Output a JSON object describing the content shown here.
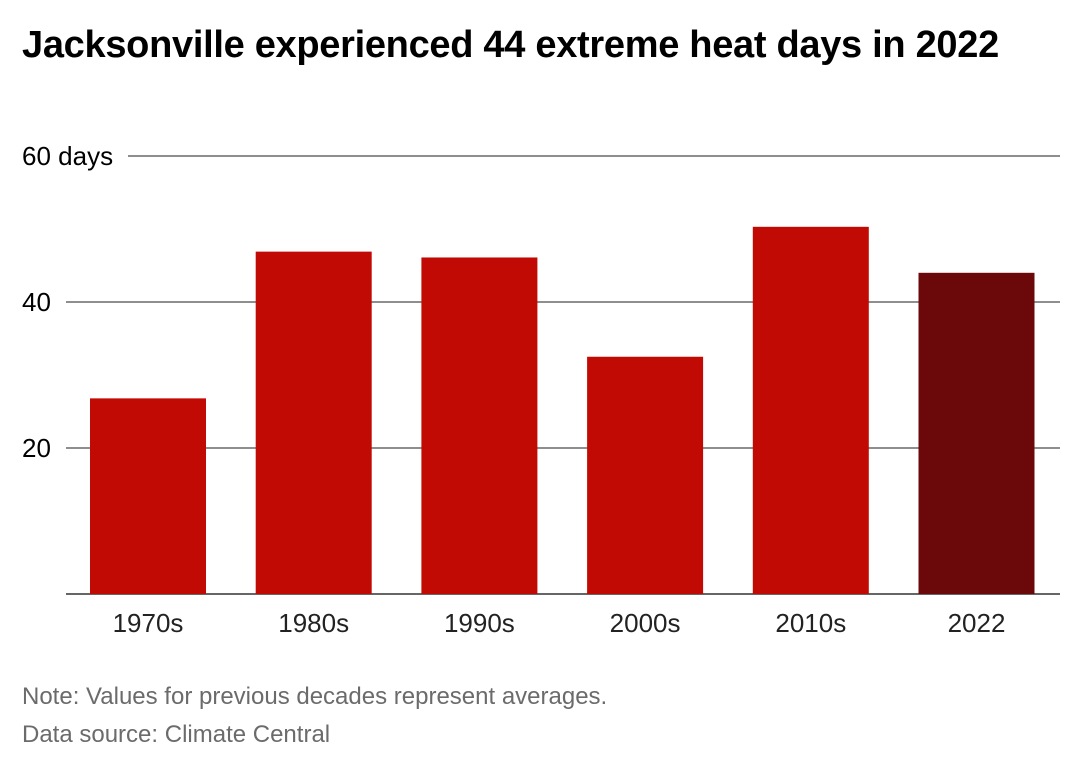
{
  "title": "Jacksonville experienced 44 extreme heat days in 2022",
  "note": "Note: Values for previous decades represent averages.",
  "source": "Data source: Climate Central",
  "colors": {
    "bar": "#c20a04",
    "highlight_bar": "#6b080a",
    "grid": "#4a4a4a",
    "text": "#000000",
    "notes": "#6b6b6b"
  },
  "chart_data": {
    "type": "bar",
    "categories": [
      "1970s",
      "1980s",
      "1990s",
      "2000s",
      "2010s",
      "2022"
    ],
    "values": [
      26.8,
      46.9,
      46.1,
      32.5,
      50.3,
      44
    ],
    "highlight_index": 5,
    "ylim": [
      0,
      60
    ],
    "yticks": [
      0,
      20,
      40,
      60
    ],
    "ytick_labels": [
      "",
      "20",
      "40",
      "60 days"
    ],
    "xlabel": "",
    "ylabel": "",
    "grid": true,
    "legend": "none"
  }
}
